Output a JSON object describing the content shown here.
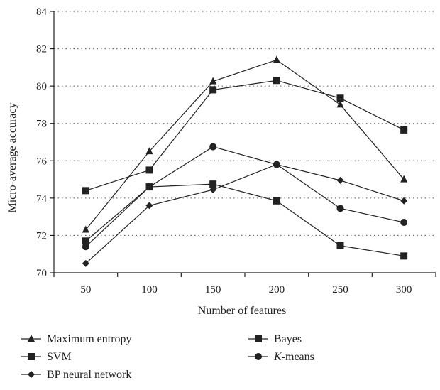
{
  "chart_data": {
    "type": "line",
    "title": "",
    "xlabel": "Number of features",
    "ylabel": "Micro-average accuracy",
    "x": [
      50,
      100,
      150,
      200,
      250,
      300
    ],
    "xticks": [
      "50",
      "100",
      "150",
      "200",
      "250",
      "300"
    ],
    "ylim": [
      70,
      84
    ],
    "yticks": [
      70,
      72,
      74,
      76,
      78,
      80,
      82,
      84
    ],
    "grid": "horizontal dotted",
    "legend_position": "bottom",
    "series": [
      {
        "name": "Maximum entropy",
        "marker": "triangle",
        "values": [
          72.3,
          76.5,
          80.25,
          81.4,
          79.0,
          75.0
        ]
      },
      {
        "name": "Bayes",
        "marker": "square",
        "values": [
          74.4,
          75.5,
          79.8,
          80.3,
          79.35,
          77.65
        ]
      },
      {
        "name": "SVM",
        "marker": "square",
        "values": [
          71.7,
          74.6,
          74.75,
          73.85,
          71.45,
          70.9
        ]
      },
      {
        "name": "K-means",
        "marker": "circle",
        "values": [
          71.4,
          74.6,
          76.75,
          75.8,
          73.45,
          72.7
        ]
      },
      {
        "name": "BP neural network",
        "marker": "diamond",
        "values": [
          70.5,
          73.6,
          74.45,
          75.8,
          74.95,
          73.85
        ]
      }
    ],
    "colors": {
      "line": "#222222",
      "grid": "#555555"
    }
  }
}
